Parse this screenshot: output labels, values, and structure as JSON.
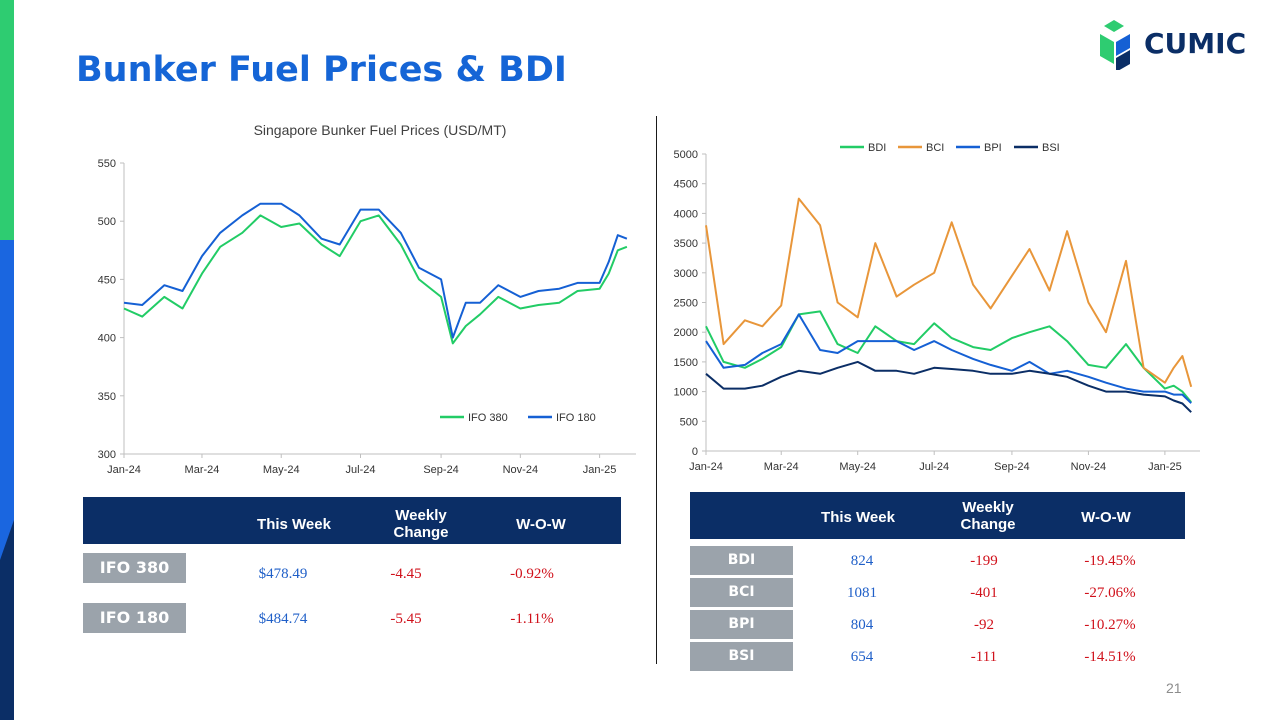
{
  "page": {
    "title": "Bunker Fuel Prices & BDI",
    "logo_text": "CUMIC",
    "page_number": "21",
    "colors": {
      "title": "#1565d6",
      "header_bg": "#0b2e66",
      "label_bg": "#9ba3ab",
      "positive": "#1f5fc8",
      "negative": "#d0111b",
      "accent_top": "#2ecc71",
      "accent_bottom": "#0d47c9"
    }
  },
  "chart_data": [
    {
      "type": "line",
      "title": "Singapore Bunker Fuel Prices (USD/MT)",
      "xlabel": "",
      "ylabel": "",
      "x_tick_labels": [
        "Jan-24",
        "Mar-24",
        "May-24",
        "Jul-24",
        "Sep-24",
        "Nov-24",
        "Jan-25"
      ],
      "y_tick_labels": [
        "300",
        "350",
        "400",
        "450",
        "500",
        "550"
      ],
      "ylim": [
        300,
        550
      ],
      "grid": false,
      "legend": "bottom-right",
      "x": [
        "2024-01-01",
        "2024-01-15",
        "2024-02-01",
        "2024-02-15",
        "2024-03-01",
        "2024-03-15",
        "2024-04-01",
        "2024-04-15",
        "2024-05-01",
        "2024-05-15",
        "2024-06-01",
        "2024-06-15",
        "2024-07-01",
        "2024-07-15",
        "2024-08-01",
        "2024-08-15",
        "2024-09-01",
        "2024-09-10",
        "2024-09-20",
        "2024-10-01",
        "2024-10-15",
        "2024-11-01",
        "2024-11-15",
        "2024-12-01",
        "2024-12-15",
        "2025-01-01",
        "2025-01-08",
        "2025-01-15",
        "2025-01-22"
      ],
      "series": [
        {
          "name": "IFO 380",
          "color": "#22cc66",
          "values": [
            425,
            418,
            435,
            425,
            455,
            478,
            490,
            505,
            495,
            498,
            480,
            470,
            500,
            505,
            480,
            450,
            435,
            395,
            410,
            420,
            435,
            425,
            428,
            430,
            440,
            442,
            455,
            475,
            478
          ]
        },
        {
          "name": "IFO 180",
          "color": "#1560d4",
          "values": [
            430,
            428,
            445,
            440,
            470,
            490,
            505,
            515,
            515,
            505,
            485,
            480,
            510,
            510,
            490,
            460,
            450,
            400,
            430,
            430,
            445,
            435,
            440,
            442,
            447,
            447,
            465,
            488,
            485
          ]
        }
      ]
    },
    {
      "type": "line",
      "title": "",
      "xlabel": "",
      "ylabel": "",
      "x_tick_labels": [
        "Jan-24",
        "Mar-24",
        "May-24",
        "Jul-24",
        "Sep-24",
        "Nov-24",
        "Jan-25"
      ],
      "y_tick_labels": [
        "0",
        "500",
        "1000",
        "1500",
        "2000",
        "2500",
        "3000",
        "3500",
        "4000",
        "4500",
        "5000"
      ],
      "ylim": [
        0,
        5000
      ],
      "grid": false,
      "legend": "top",
      "x": [
        "2024-01-01",
        "2024-01-15",
        "2024-02-01",
        "2024-02-15",
        "2024-03-01",
        "2024-03-15",
        "2024-04-01",
        "2024-04-15",
        "2024-05-01",
        "2024-05-15",
        "2024-06-01",
        "2024-06-15",
        "2024-07-01",
        "2024-07-15",
        "2024-08-01",
        "2024-08-15",
        "2024-09-01",
        "2024-09-15",
        "2024-10-01",
        "2024-10-15",
        "2024-11-01",
        "2024-11-15",
        "2024-12-01",
        "2024-12-15",
        "2025-01-01",
        "2025-01-08",
        "2025-01-15",
        "2025-01-22"
      ],
      "series": [
        {
          "name": "BDI",
          "color": "#22cc66",
          "values": [
            2100,
            1500,
            1400,
            1550,
            1750,
            2300,
            2350,
            1800,
            1650,
            2100,
            1850,
            1800,
            2150,
            1900,
            1750,
            1700,
            1900,
            2000,
            2100,
            1850,
            1450,
            1400,
            1800,
            1400,
            1050,
            1100,
            1000,
            824
          ]
        },
        {
          "name": "BCI",
          "color": "#e8963a",
          "values": [
            3800,
            1800,
            2200,
            2100,
            2450,
            4250,
            3800,
            2500,
            2250,
            3500,
            2600,
            2800,
            3000,
            3850,
            2800,
            2400,
            2950,
            3400,
            2700,
            3700,
            2500,
            2000,
            3200,
            1400,
            1150,
            1400,
            1600,
            1081
          ]
        },
        {
          "name": "BPI",
          "color": "#1560d4",
          "values": [
            1850,
            1400,
            1450,
            1650,
            1800,
            2300,
            1700,
            1650,
            1850,
            1850,
            1850,
            1700,
            1850,
            1700,
            1550,
            1450,
            1350,
            1500,
            1300,
            1350,
            1250,
            1150,
            1050,
            1000,
            1000,
            950,
            950,
            804
          ]
        },
        {
          "name": "BSI",
          "color": "#0b2e66",
          "values": [
            1300,
            1050,
            1050,
            1100,
            1250,
            1350,
            1300,
            1400,
            1500,
            1350,
            1350,
            1300,
            1400,
            1380,
            1350,
            1300,
            1300,
            1350,
            1300,
            1250,
            1100,
            1000,
            1000,
            950,
            920,
            850,
            800,
            654
          ]
        }
      ]
    }
  ],
  "fuel_table": {
    "headers": [
      "This Week",
      "Weekly Change",
      "W-O-W"
    ],
    "rows": [
      {
        "label": "IFO 380",
        "price": "$478.49",
        "change": "-4.45",
        "wow": "-0.92%"
      },
      {
        "label": "IFO 180",
        "price": "$484.74",
        "change": "-5.45",
        "wow": "-1.11%"
      }
    ]
  },
  "index_table": {
    "headers": [
      "This Week",
      "Weekly Change",
      "W-O-W"
    ],
    "rows": [
      {
        "label": "BDI",
        "value": "824",
        "change": "-199",
        "wow": "-19.45%"
      },
      {
        "label": "BCI",
        "value": "1081",
        "change": "-401",
        "wow": "-27.06%"
      },
      {
        "label": "BPI",
        "value": "804",
        "change": "-92",
        "wow": "-10.27%"
      },
      {
        "label": "BSI",
        "value": "654",
        "change": "-111",
        "wow": "-14.51%"
      }
    ]
  }
}
